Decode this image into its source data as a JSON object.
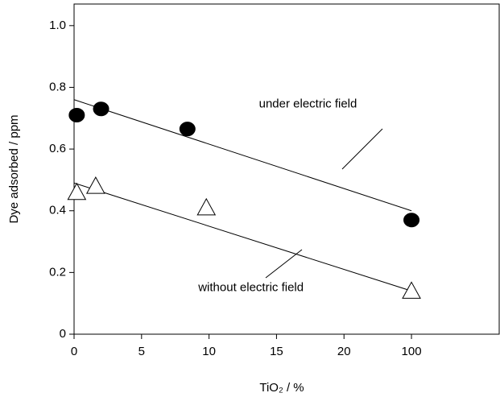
{
  "chart_data": {
    "type": "scatter",
    "ylabel": "Dye adsorbed / ppm",
    "xlabel": "TiO₂ / %",
    "xlim": [
      0,
      106.5
    ],
    "xbreak": [
      20,
      100
    ],
    "xticks": [
      0,
      5,
      10,
      15,
      20,
      100
    ],
    "ylim": [
      0,
      1.07
    ],
    "yticks": [
      0,
      {
        "value": 0.2,
        "label": "0.2"
      },
      {
        "value": 0.4,
        "label": "0.4"
      },
      {
        "value": 0.6,
        "label": "0.6"
      },
      {
        "value": 0.8,
        "label": "0.8"
      },
      {
        "value": 1,
        "label": "1.0"
      }
    ],
    "series": [
      {
        "marker": "circle",
        "color": "#000000",
        "x": [
          0.2,
          2.0,
          8.4,
          100
        ],
        "values": [
          0.71,
          0.73,
          0.665,
          0.37
        ]
      },
      {
        "marker": "triangle",
        "color": "#ffffff",
        "x": [
          0.2,
          1.6,
          9.8,
          100
        ],
        "values": [
          0.46,
          0.48,
          0.41,
          0.14
        ]
      }
    ],
    "fits": [
      {
        "color": "#000000",
        "x": [
          0,
          100
        ],
        "values": [
          0.76,
          0.4
        ]
      },
      {
        "color": "#000000",
        "x": [
          0,
          100
        ],
        "values": [
          0.49,
          0.14
        ]
      }
    ],
    "annotations": [
      {
        "text": "under electric field",
        "x": 13.7,
        "y": 0.745
      },
      {
        "text": "without  electric field",
        "x": 9.2,
        "y": 0.15
      }
    ]
  }
}
